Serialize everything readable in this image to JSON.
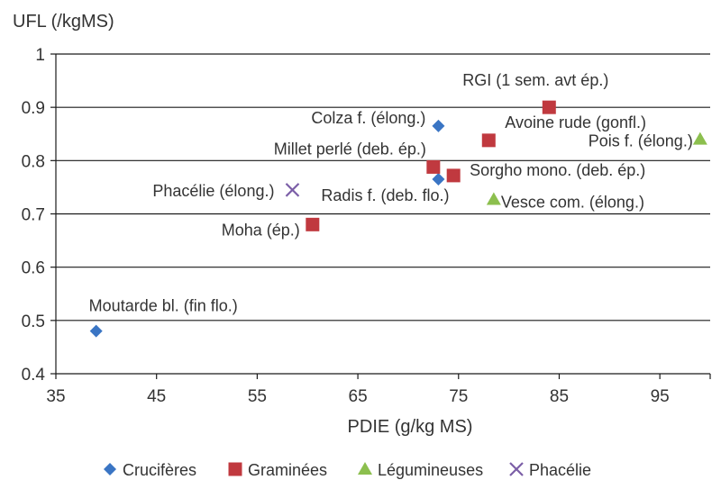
{
  "chart_data": {
    "type": "scatter",
    "title": "",
    "xlabel": "PDIE (g/kg MS)",
    "ylabel": "UFL (/kgMS)",
    "xlim": [
      35,
      100
    ],
    "ylim": [
      0.4,
      1.0
    ],
    "x_ticks": [
      35,
      45,
      55,
      65,
      75,
      85,
      95
    ],
    "x_tick_labels": [
      "35",
      "45",
      "55",
      "65",
      "75",
      "85",
      "95"
    ],
    "y_ticks": [
      0.4,
      0.5,
      0.6,
      0.7,
      0.8,
      0.9,
      1.0
    ],
    "y_tick_labels": [
      "0.4",
      "0.5",
      "0.6",
      "0.7",
      "0.8",
      "0.9",
      "1"
    ],
    "grid": "horizontal",
    "legend_position": "bottom",
    "colors": {
      "Crucifères": "#3a75c4",
      "Graminées": "#c0393f",
      "Légumineuses": "#8cbf4e",
      "Phacélie": "#7b5ea7"
    },
    "series": [
      {
        "name": "Crucifères",
        "marker": "diamond",
        "points": [
          {
            "label": "Colza f. (élong.)",
            "x": 73,
            "y": 0.865
          },
          {
            "label": "Radis f. (deb. flo.)",
            "x": 73,
            "y": 0.765
          },
          {
            "label": "Moutarde bl. (fin flo.)",
            "x": 39,
            "y": 0.48
          }
        ]
      },
      {
        "name": "Graminées",
        "marker": "square",
        "points": [
          {
            "label": "RGI (1 sem. avt ép.)",
            "x": 84,
            "y": 0.9
          },
          {
            "label": "Avoine rude (gonfl.)",
            "x": 78,
            "y": 0.838
          },
          {
            "label": "Millet perlé (deb. ép.)",
            "x": 72.5,
            "y": 0.788
          },
          {
            "label": "Sorgho mono. (deb. ép.)",
            "x": 74.5,
            "y": 0.772
          },
          {
            "label": "Moha (ép.)",
            "x": 60.5,
            "y": 0.68
          }
        ]
      },
      {
        "name": "Légumineuses",
        "marker": "triangle",
        "points": [
          {
            "label": "Pois f. (élong.)",
            "x": 99,
            "y": 0.84
          },
          {
            "label": "Vesce com. (élong.)",
            "x": 78.5,
            "y": 0.727
          }
        ]
      },
      {
        "name": "Phacélie",
        "marker": "x",
        "points": [
          {
            "label": "Phacélie (élong.)",
            "x": 58.5,
            "y": 0.745
          }
        ]
      }
    ]
  }
}
